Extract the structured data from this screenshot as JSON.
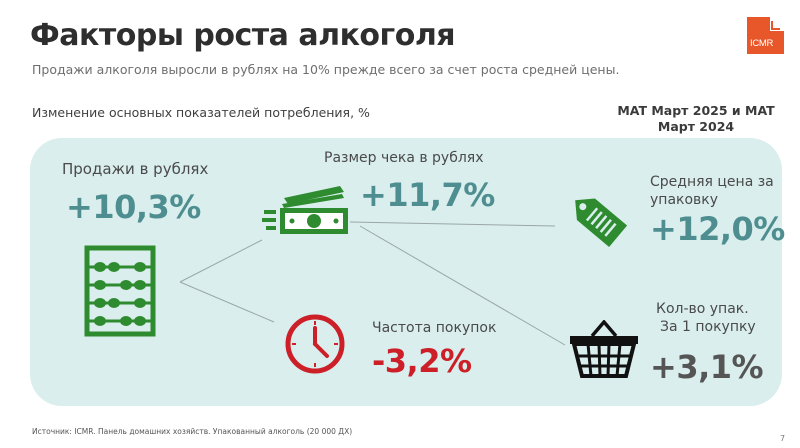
{
  "header": {
    "title": "Факторы роста алкоголя",
    "subtitle": "Продажи алкоголя выросли в рублях на 10% прежде всего за счет роста средней цены."
  },
  "logo": {
    "text": "ICMR",
    "color": "#e8572a"
  },
  "section_label": "Изменение основных показателей потребления, %",
  "period": {
    "line1": "MAT Март 2025 и MAT",
    "line2": "Март 2024"
  },
  "metrics": {
    "sales": {
      "label": "Продажи в рублях",
      "value": "+10,3%",
      "icon": "abacus-icon"
    },
    "check": {
      "label": "Размер чека в рублях",
      "value": "+11,7%",
      "icon": "money-icon"
    },
    "frequency": {
      "label": "Частота покупок",
      "value": "-3,2%",
      "icon": "clock-icon"
    },
    "price": {
      "label_line1": "Средняя цена за",
      "label_line2": "упаковку",
      "value": "+12,0%",
      "icon": "price-tag-icon"
    },
    "packs": {
      "label_line1": "Кол-во упак.",
      "label_line2": "За 1 покупку",
      "value": "+3,1%",
      "icon": "basket-icon"
    }
  },
  "colors": {
    "accent": "#4f8e90",
    "negative": "#cc1f27",
    "icon_green": "#2e8b2f",
    "panel": "#d9eeed"
  },
  "footer": {
    "source": "Источник: ICMR. Панель домашних хозяйств. Упакованный алкоголь (20 000 ДХ)",
    "page": "7"
  }
}
